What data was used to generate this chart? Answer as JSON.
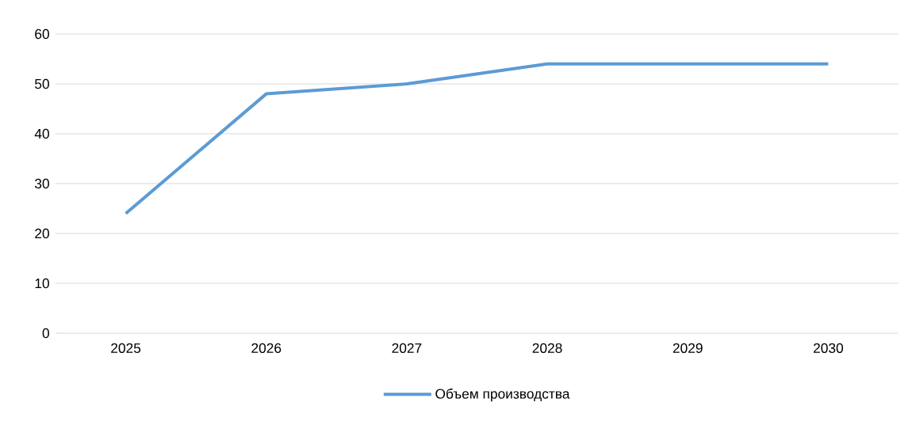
{
  "chart_data": {
    "type": "line",
    "categories": [
      "2025",
      "2026",
      "2027",
      "2028",
      "2029",
      "2030"
    ],
    "series": [
      {
        "name": "Объем производства",
        "color": "#5b9bd5",
        "values": [
          24,
          48,
          50,
          54,
          54,
          54
        ]
      }
    ],
    "ylim": [
      0,
      60
    ],
    "yticks": [
      0,
      10,
      20,
      30,
      40,
      50,
      60
    ],
    "grid": "y",
    "legend": "bottom",
    "marker": "none",
    "line_style": "solid"
  }
}
